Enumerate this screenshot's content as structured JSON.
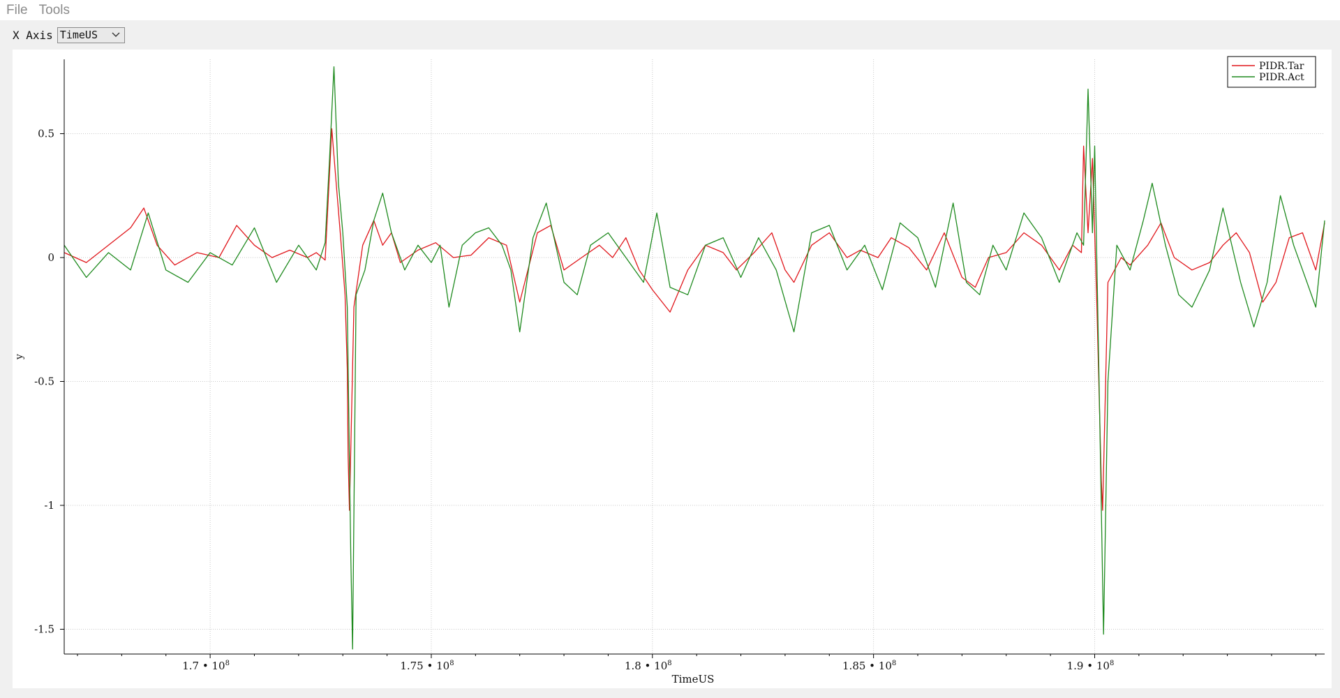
{
  "menu": {
    "file_label": "File",
    "tools_label": "Tools"
  },
  "toolbar": {
    "xaxis_label": "X Axis",
    "xaxis_value": "TimeUS"
  },
  "colors": {
    "tar": "#e0161b",
    "act": "#1e8a1e",
    "grid": "#c8c8c8",
    "axis": "#000000"
  },
  "chart_data": {
    "type": "line",
    "xlabel": "TimeUS",
    "ylabel": "y",
    "xlim": [
      166700000,
      195200000
    ],
    "ylim": [
      -1.6,
      0.8
    ],
    "legend_position": "top-right",
    "grid": true,
    "x_ticks": [
      {
        "value": 170000000,
        "label": "1.7 • 10",
        "exp": "8"
      },
      {
        "value": 175000000,
        "label": "1.75 • 10",
        "exp": "8"
      },
      {
        "value": 180000000,
        "label": "1.8 • 10",
        "exp": "8"
      },
      {
        "value": 185000000,
        "label": "1.85 • 10",
        "exp": "8"
      },
      {
        "value": 190000000,
        "label": "1.9 • 10",
        "exp": "8"
      }
    ],
    "y_ticks": [
      {
        "value": 0.5,
        "label": "0.5"
      },
      {
        "value": 0,
        "label": "0"
      },
      {
        "value": -0.5,
        "label": "-0.5"
      },
      {
        "value": -1,
        "label": "-1"
      },
      {
        "value": -1.5,
        "label": "-1.5"
      }
    ],
    "series": [
      {
        "name": "PIDR.Tar",
        "color": "#e0161b",
        "points": [
          [
            166700000,
            0.02
          ],
          [
            167200000,
            -0.02
          ],
          [
            167700000,
            0.05
          ],
          [
            168200000,
            0.12
          ],
          [
            168500000,
            0.2
          ],
          [
            168800000,
            0.05
          ],
          [
            169200000,
            -0.03
          ],
          [
            169700000,
            0.02
          ],
          [
            170200000,
            0.0
          ],
          [
            170600000,
            0.13
          ],
          [
            171000000,
            0.05
          ],
          [
            171400000,
            0.0
          ],
          [
            171800000,
            0.03
          ],
          [
            172200000,
            0.0
          ],
          [
            172400000,
            0.02
          ],
          [
            172600000,
            -0.01
          ],
          [
            172750000,
            0.52
          ],
          [
            172850000,
            0.3
          ],
          [
            172950000,
            0.08
          ],
          [
            173050000,
            -0.15
          ],
          [
            173100000,
            -0.45
          ],
          [
            173120000,
            -0.8
          ],
          [
            173150000,
            -1.02
          ],
          [
            173250000,
            -0.2
          ],
          [
            173450000,
            0.05
          ],
          [
            173700000,
            0.15
          ],
          [
            173900000,
            0.05
          ],
          [
            174100000,
            0.1
          ],
          [
            174300000,
            -0.02
          ],
          [
            174700000,
            0.03
          ],
          [
            175100000,
            0.06
          ],
          [
            175500000,
            0.0
          ],
          [
            175900000,
            0.01
          ],
          [
            176300000,
            0.08
          ],
          [
            176700000,
            0.05
          ],
          [
            177000000,
            -0.18
          ],
          [
            177400000,
            0.1
          ],
          [
            177700000,
            0.13
          ],
          [
            178000000,
            -0.05
          ],
          [
            178400000,
            0.0
          ],
          [
            178800000,
            0.05
          ],
          [
            179100000,
            0.0
          ],
          [
            179400000,
            0.08
          ],
          [
            179700000,
            -0.05
          ],
          [
            180000000,
            -0.13
          ],
          [
            180400000,
            -0.22
          ],
          [
            180800000,
            -0.05
          ],
          [
            181200000,
            0.05
          ],
          [
            181600000,
            0.02
          ],
          [
            181900000,
            -0.05
          ],
          [
            182300000,
            0.02
          ],
          [
            182700000,
            0.1
          ],
          [
            183000000,
            -0.05
          ],
          [
            183200000,
            -0.1
          ],
          [
            183600000,
            0.05
          ],
          [
            184000000,
            0.1
          ],
          [
            184400000,
            0.0
          ],
          [
            184700000,
            0.03
          ],
          [
            185100000,
            0.0
          ],
          [
            185400000,
            0.08
          ],
          [
            185800000,
            0.04
          ],
          [
            186200000,
            -0.05
          ],
          [
            186600000,
            0.1
          ],
          [
            187000000,
            -0.08
          ],
          [
            187300000,
            -0.12
          ],
          [
            187600000,
            0.0
          ],
          [
            188000000,
            0.02
          ],
          [
            188400000,
            0.1
          ],
          [
            188800000,
            0.05
          ],
          [
            189200000,
            -0.05
          ],
          [
            189500000,
            0.05
          ],
          [
            189700000,
            0.02
          ],
          [
            189750000,
            0.45
          ],
          [
            189850000,
            0.1
          ],
          [
            189950000,
            0.4
          ],
          [
            190050000,
            -0.2
          ],
          [
            190150000,
            -0.9
          ],
          [
            190180000,
            -1.02
          ],
          [
            190300000,
            -0.1
          ],
          [
            190600000,
            0.0
          ],
          [
            190800000,
            -0.03
          ],
          [
            191200000,
            0.05
          ],
          [
            191500000,
            0.14
          ],
          [
            191800000,
            0.0
          ],
          [
            192200000,
            -0.05
          ],
          [
            192600000,
            -0.02
          ],
          [
            192900000,
            0.05
          ],
          [
            193200000,
            0.1
          ],
          [
            193500000,
            0.02
          ],
          [
            193800000,
            -0.18
          ],
          [
            194100000,
            -0.1
          ],
          [
            194400000,
            0.08
          ],
          [
            194700000,
            0.1
          ],
          [
            195000000,
            -0.05
          ],
          [
            195200000,
            0.14
          ]
        ]
      },
      {
        "name": "PIDR.Act",
        "color": "#1e8a1e",
        "points": [
          [
            166700000,
            0.05
          ],
          [
            167200000,
            -0.08
          ],
          [
            167700000,
            0.02
          ],
          [
            168200000,
            -0.05
          ],
          [
            168600000,
            0.18
          ],
          [
            169000000,
            -0.05
          ],
          [
            169500000,
            -0.1
          ],
          [
            170000000,
            0.02
          ],
          [
            170500000,
            -0.03
          ],
          [
            171000000,
            0.12
          ],
          [
            171500000,
            -0.1
          ],
          [
            172000000,
            0.05
          ],
          [
            172400000,
            -0.05
          ],
          [
            172600000,
            0.06
          ],
          [
            172700000,
            0.4
          ],
          [
            172800000,
            0.77
          ],
          [
            172900000,
            0.3
          ],
          [
            173000000,
            0.1
          ],
          [
            173100000,
            -0.2
          ],
          [
            173180000,
            -1.2
          ],
          [
            173220000,
            -1.58
          ],
          [
            173300000,
            -0.15
          ],
          [
            173500000,
            -0.05
          ],
          [
            173700000,
            0.15
          ],
          [
            173900000,
            0.26
          ],
          [
            174100000,
            0.1
          ],
          [
            174400000,
            -0.05
          ],
          [
            174700000,
            0.05
          ],
          [
            175000000,
            -0.02
          ],
          [
            175200000,
            0.05
          ],
          [
            175400000,
            -0.2
          ],
          [
            175700000,
            0.05
          ],
          [
            176000000,
            0.1
          ],
          [
            176300000,
            0.12
          ],
          [
            176600000,
            0.05
          ],
          [
            176800000,
            -0.05
          ],
          [
            177000000,
            -0.3
          ],
          [
            177300000,
            0.08
          ],
          [
            177600000,
            0.22
          ],
          [
            178000000,
            -0.1
          ],
          [
            178300000,
            -0.15
          ],
          [
            178600000,
            0.05
          ],
          [
            179000000,
            0.1
          ],
          [
            179400000,
            0.0
          ],
          [
            179800000,
            -0.1
          ],
          [
            180100000,
            0.18
          ],
          [
            180400000,
            -0.12
          ],
          [
            180800000,
            -0.15
          ],
          [
            181200000,
            0.05
          ],
          [
            181600000,
            0.08
          ],
          [
            182000000,
            -0.08
          ],
          [
            182400000,
            0.08
          ],
          [
            182800000,
            -0.05
          ],
          [
            183200000,
            -0.3
          ],
          [
            183600000,
            0.1
          ],
          [
            184000000,
            0.13
          ],
          [
            184400000,
            -0.05
          ],
          [
            184800000,
            0.05
          ],
          [
            185200000,
            -0.13
          ],
          [
            185600000,
            0.14
          ],
          [
            186000000,
            0.08
          ],
          [
            186400000,
            -0.12
          ],
          [
            186800000,
            0.22
          ],
          [
            187100000,
            -0.1
          ],
          [
            187400000,
            -0.15
          ],
          [
            187700000,
            0.05
          ],
          [
            188000000,
            -0.05
          ],
          [
            188400000,
            0.18
          ],
          [
            188800000,
            0.08
          ],
          [
            189200000,
            -0.1
          ],
          [
            189600000,
            0.1
          ],
          [
            189750000,
            0.05
          ],
          [
            189850000,
            0.68
          ],
          [
            189950000,
            0.1
          ],
          [
            190000000,
            0.45
          ],
          [
            190100000,
            -0.5
          ],
          [
            190200000,
            -1.52
          ],
          [
            190300000,
            -0.5
          ],
          [
            190500000,
            0.05
          ],
          [
            190800000,
            -0.05
          ],
          [
            191100000,
            0.15
          ],
          [
            191300000,
            0.3
          ],
          [
            191600000,
            0.05
          ],
          [
            191900000,
            -0.15
          ],
          [
            192200000,
            -0.2
          ],
          [
            192600000,
            -0.05
          ],
          [
            192900000,
            0.2
          ],
          [
            193300000,
            -0.1
          ],
          [
            193600000,
            -0.28
          ],
          [
            193900000,
            -0.1
          ],
          [
            194200000,
            0.25
          ],
          [
            194500000,
            0.05
          ],
          [
            194800000,
            -0.1
          ],
          [
            195000000,
            -0.2
          ],
          [
            195200000,
            0.15
          ]
        ]
      }
    ]
  }
}
